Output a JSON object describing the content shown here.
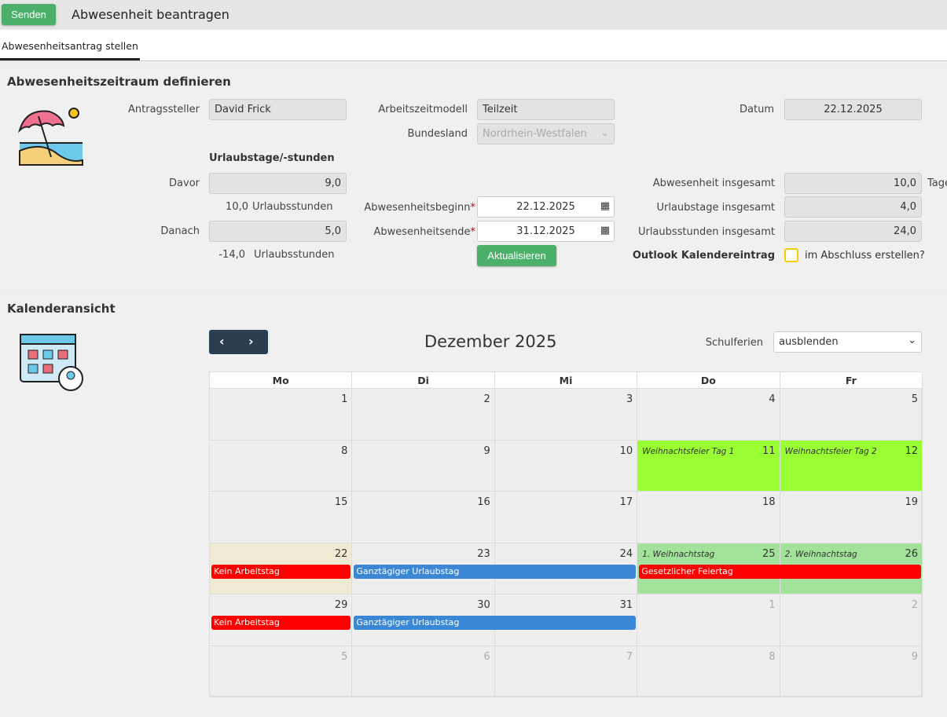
{
  "header": {
    "send_label": "Senden",
    "title": "Abwesenheit beantragen"
  },
  "tabs": [
    {
      "label": "Abwesenheitsantrag stellen",
      "active": true
    }
  ],
  "form": {
    "title": "Abwesenheitszeitraum definieren",
    "antragsteller_label": "Antragssteller",
    "antragsteller": "David Frick",
    "arbeitszeitmodell_label": "Arbeitszeitmodell",
    "arbeitszeitmodell": "Teilzeit",
    "bundesland_label": "Bundesland",
    "bundesland": "Nordrhein-Westfalen",
    "datum_label": "Datum",
    "datum": "22.12.2025",
    "urlaub_heading": "Urlaubstage/-stunden",
    "davor_label": "Davor",
    "davor": "9,0",
    "davor_hours": "10,0",
    "hours_unit": "Urlaubsstunden",
    "danach_label": "Danach",
    "danach": "5,0",
    "danach_hours": "-14,0",
    "beginn_label": "Abwesenheitsbeginn",
    "beginn": "22.12.2025",
    "ende_label": "Abwesenheitsende",
    "ende": "31.12.2025",
    "update_label": "Aktualisieren",
    "abw_total_label": "Abwesenheit insgesamt",
    "abw_total": "10,0",
    "abw_unit": "Tage",
    "urlaubstage_label": "Urlaubstage insgesamt",
    "urlaubstage": "4,0",
    "urlaubsstunden_label": "Urlaubsstunden insgesamt",
    "urlaubsstunden": "24,0",
    "outlook_label": "Outlook Kalendereintrag",
    "outlook_text": "im Abschluss erstellen?",
    "outlook_checked": false
  },
  "calendar": {
    "title": "Kalenderansicht",
    "month": "Dezember 2025",
    "schulferien_label": "Schulferien",
    "schulferien": "ausblenden",
    "weekdays": [
      "Mo",
      "Di",
      "Mi",
      "Do",
      "Fr"
    ],
    "weeks": [
      [
        "1",
        "2",
        "3",
        "4",
        "5"
      ],
      [
        "8",
        "9",
        "10",
        "11",
        "12"
      ],
      [
        "15",
        "16",
        "17",
        "18",
        "19"
      ],
      [
        "22",
        "23",
        "24",
        "25",
        "26"
      ],
      [
        "29",
        "30",
        "31",
        "1",
        "2"
      ],
      [
        "5",
        "6",
        "7",
        "8",
        "9"
      ]
    ],
    "holidays": [
      {
        "week": 1,
        "day": 3,
        "label": "Weihnachtsfeier Tag 1",
        "color": "#99ff33"
      },
      {
        "week": 1,
        "day": 4,
        "label": "Weihnachtsfeier Tag 2",
        "color": "#99ff33"
      },
      {
        "week": 3,
        "day": 3,
        "label": "1. Weihnachtstag",
        "color": "#a3e29a"
      },
      {
        "week": 3,
        "day": 4,
        "label": "2. Weihnachtstag",
        "color": "#a3e29a"
      }
    ],
    "events": [
      {
        "week": 3,
        "start": 0,
        "span": 1,
        "label": "Kein Arbeitstag",
        "color": "#ff0000"
      },
      {
        "week": 3,
        "start": 1,
        "span": 2,
        "label": "Ganztägiger Urlaubstag",
        "color": "#3a87d6"
      },
      {
        "week": 3,
        "start": 3,
        "span": 2,
        "label": "Gesetzlicher Feiertag",
        "color": "#ff0000"
      },
      {
        "week": 4,
        "start": 0,
        "span": 1,
        "label": "Kein Arbeitstag",
        "color": "#ff0000"
      },
      {
        "week": 4,
        "start": 1,
        "span": 2,
        "label": "Ganztägiger Urlaubstag",
        "color": "#3a87d6"
      }
    ]
  }
}
